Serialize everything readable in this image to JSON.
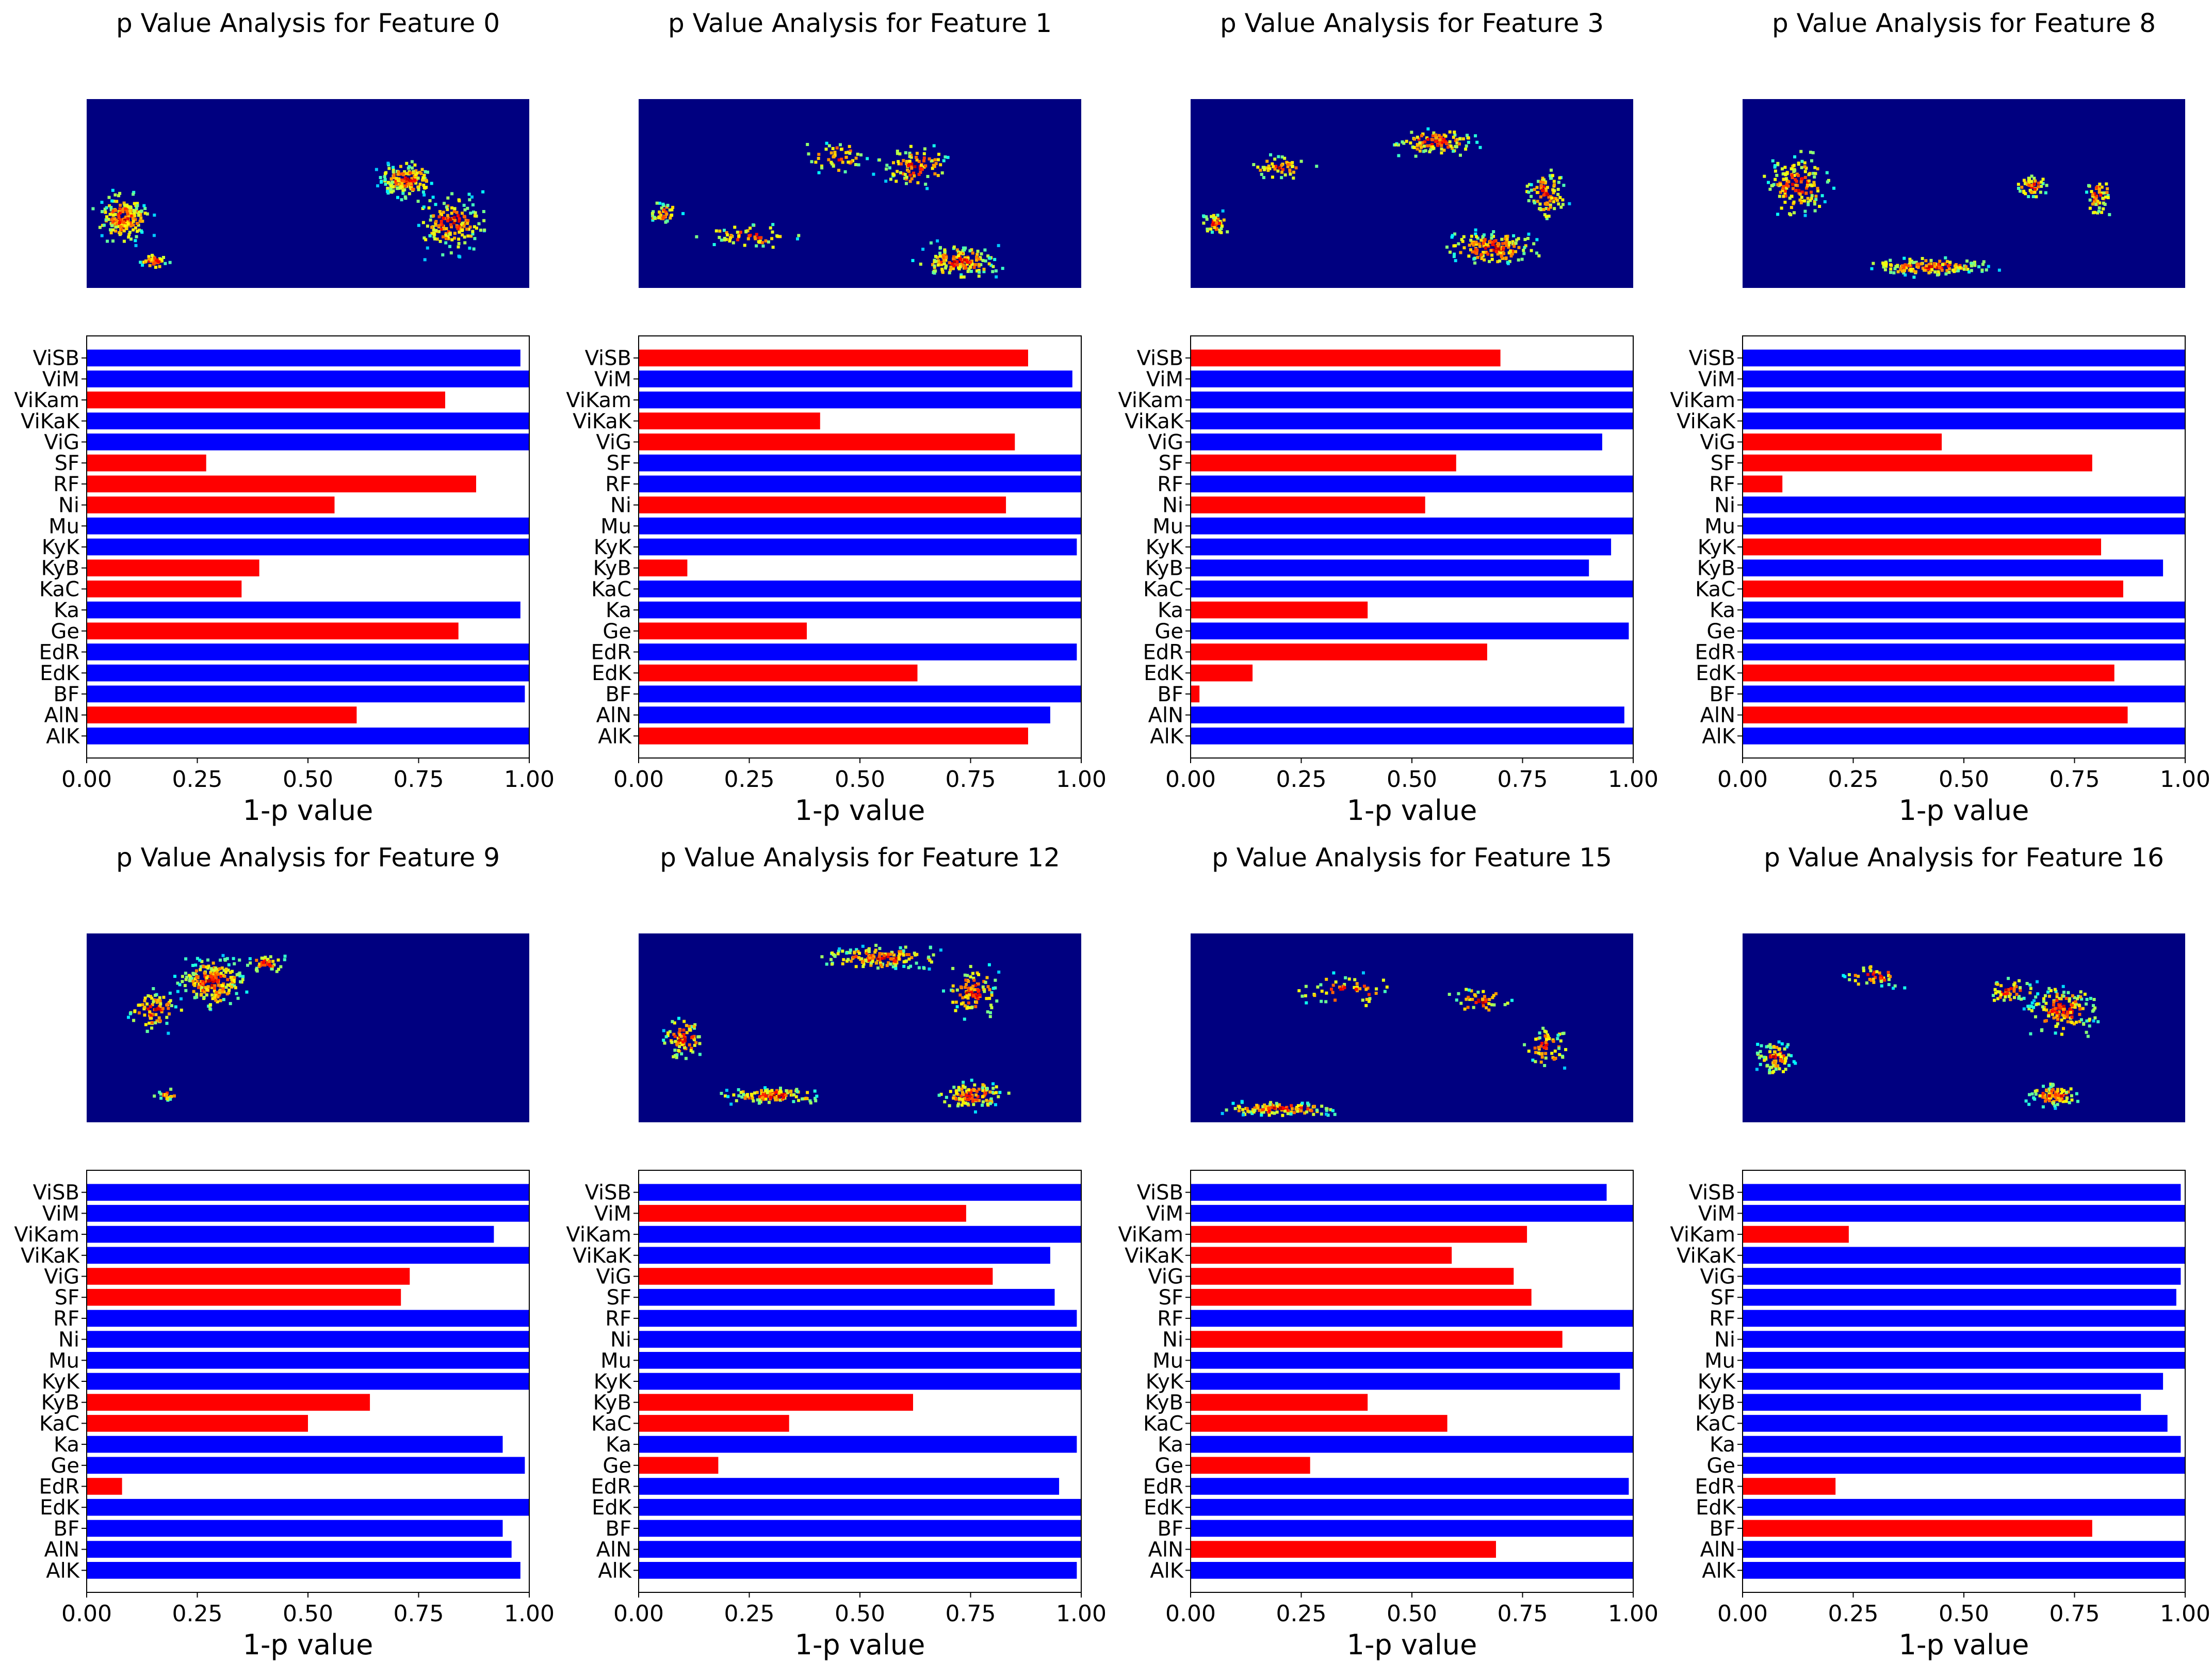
{
  "figure": {
    "xlabel": "1-p value",
    "colors": {
      "pass": "#0000ff",
      "fail": "#ff0000",
      "heatmap_background": "#000080"
    }
  },
  "chart_data": [
    {
      "type": "bar",
      "title": "p Value Analysis for Feature 0",
      "xlabel": "1-p value",
      "xlim": [
        0,
        1
      ],
      "xticks": [
        "0.00",
        "0.25",
        "0.50",
        "0.75",
        "1.00"
      ],
      "categories": [
        "ViSB",
        "ViM",
        "ViKam",
        "ViKaK",
        "ViG",
        "SF",
        "RF",
        "Ni",
        "Mu",
        "KyK",
        "KyB",
        "KaC",
        "Ka",
        "Ge",
        "EdR",
        "EdK",
        "BF",
        "AlN",
        "AlK"
      ],
      "values": [
        0.98,
        1.0,
        0.81,
        1.0,
        1.0,
        0.27,
        0.88,
        0.56,
        1.0,
        1.0,
        0.39,
        0.35,
        0.98,
        0.84,
        1.0,
        1.0,
        0.99,
        0.61,
        1.0
      ],
      "bar_colors": [
        "blue",
        "blue",
        "red",
        "blue",
        "blue",
        "red",
        "red",
        "red",
        "blue",
        "blue",
        "red",
        "red",
        "blue",
        "red",
        "blue",
        "blue",
        "blue",
        "red",
        "blue"
      ],
      "heatmap": "feature map (jet colormap)"
    },
    {
      "type": "bar",
      "title": "p Value Analysis for Feature 1",
      "xlabel": "1-p value",
      "xlim": [
        0,
        1
      ],
      "xticks": [
        "0.00",
        "0.25",
        "0.50",
        "0.75",
        "1.00"
      ],
      "categories": [
        "ViSB",
        "ViM",
        "ViKam",
        "ViKaK",
        "ViG",
        "SF",
        "RF",
        "Ni",
        "Mu",
        "KyK",
        "KyB",
        "KaC",
        "Ka",
        "Ge",
        "EdR",
        "EdK",
        "BF",
        "AlN",
        "AlK"
      ],
      "values": [
        0.88,
        0.98,
        1.0,
        0.41,
        0.85,
        1.0,
        1.0,
        0.83,
        1.0,
        0.99,
        0.11,
        1.0,
        1.0,
        0.38,
        0.99,
        0.63,
        1.0,
        0.93,
        0.88
      ],
      "bar_colors": [
        "red",
        "blue",
        "blue",
        "red",
        "red",
        "blue",
        "blue",
        "red",
        "blue",
        "blue",
        "red",
        "blue",
        "blue",
        "red",
        "blue",
        "red",
        "blue",
        "blue",
        "red"
      ],
      "heatmap": "feature map (jet colormap)"
    },
    {
      "type": "bar",
      "title": "p Value Analysis for Feature 3",
      "xlabel": "1-p value",
      "xlim": [
        0,
        1
      ],
      "xticks": [
        "0.00",
        "0.25",
        "0.50",
        "0.75",
        "1.00"
      ],
      "categories": [
        "ViSB",
        "ViM",
        "ViKam",
        "ViKaK",
        "ViG",
        "SF",
        "RF",
        "Ni",
        "Mu",
        "KyK",
        "KyB",
        "KaC",
        "Ka",
        "Ge",
        "EdR",
        "EdK",
        "BF",
        "AlN",
        "AlK"
      ],
      "values": [
        0.7,
        1.0,
        1.0,
        1.0,
        0.93,
        0.6,
        1.0,
        0.53,
        1.0,
        0.95,
        0.9,
        1.0,
        0.4,
        0.99,
        0.67,
        0.14,
        0.02,
        0.98,
        1.0
      ],
      "bar_colors": [
        "red",
        "blue",
        "blue",
        "blue",
        "blue",
        "red",
        "blue",
        "red",
        "blue",
        "blue",
        "blue",
        "blue",
        "red",
        "blue",
        "red",
        "red",
        "red",
        "blue",
        "blue"
      ],
      "heatmap": "feature map (jet colormap)"
    },
    {
      "type": "bar",
      "title": "p Value Analysis for Feature 8",
      "xlabel": "1-p value",
      "xlim": [
        0,
        1
      ],
      "xticks": [
        "0.00",
        "0.25",
        "0.50",
        "0.75",
        "1.00"
      ],
      "categories": [
        "ViSB",
        "ViM",
        "ViKam",
        "ViKaK",
        "ViG",
        "SF",
        "RF",
        "Ni",
        "Mu",
        "KyK",
        "KyB",
        "KaC",
        "Ka",
        "Ge",
        "EdR",
        "EdK",
        "BF",
        "AlN",
        "AlK"
      ],
      "values": [
        1.0,
        1.0,
        1.0,
        1.0,
        0.45,
        0.79,
        0.09,
        1.0,
        1.0,
        0.81,
        0.95,
        0.86,
        1.0,
        1.0,
        1.0,
        0.84,
        1.0,
        0.87,
        1.0
      ],
      "bar_colors": [
        "blue",
        "blue",
        "blue",
        "blue",
        "red",
        "red",
        "red",
        "blue",
        "blue",
        "red",
        "blue",
        "red",
        "blue",
        "blue",
        "blue",
        "red",
        "blue",
        "red",
        "blue"
      ],
      "heatmap": "feature map (jet colormap)"
    },
    {
      "type": "bar",
      "title": "p Value Analysis for Feature 9",
      "xlabel": "1-p value",
      "xlim": [
        0,
        1
      ],
      "xticks": [
        "0.00",
        "0.25",
        "0.50",
        "0.75",
        "1.00"
      ],
      "categories": [
        "ViSB",
        "ViM",
        "ViKam",
        "ViKaK",
        "ViG",
        "SF",
        "RF",
        "Ni",
        "Mu",
        "KyK",
        "KyB",
        "KaC",
        "Ka",
        "Ge",
        "EdR",
        "EdK",
        "BF",
        "AlN",
        "AlK"
      ],
      "values": [
        1.0,
        1.0,
        0.92,
        1.0,
        0.73,
        0.71,
        1.0,
        1.0,
        1.0,
        1.0,
        0.64,
        0.5,
        0.94,
        0.99,
        0.08,
        1.0,
        0.94,
        0.96,
        0.98
      ],
      "bar_colors": [
        "blue",
        "blue",
        "blue",
        "blue",
        "red",
        "red",
        "blue",
        "blue",
        "blue",
        "blue",
        "red",
        "red",
        "blue",
        "blue",
        "red",
        "blue",
        "blue",
        "blue",
        "blue"
      ],
      "heatmap": "feature map (jet colormap)"
    },
    {
      "type": "bar",
      "title": "p Value Analysis for Feature 12",
      "xlabel": "1-p value",
      "xlim": [
        0,
        1
      ],
      "xticks": [
        "0.00",
        "0.25",
        "0.50",
        "0.75",
        "1.00"
      ],
      "categories": [
        "ViSB",
        "ViM",
        "ViKam",
        "ViKaK",
        "ViG",
        "SF",
        "RF",
        "Ni",
        "Mu",
        "KyK",
        "KyB",
        "KaC",
        "Ka",
        "Ge",
        "EdR",
        "EdK",
        "BF",
        "AlN",
        "AlK"
      ],
      "values": [
        1.0,
        0.74,
        1.0,
        0.93,
        0.8,
        0.94,
        0.99,
        1.0,
        1.0,
        1.0,
        0.62,
        0.34,
        0.99,
        0.18,
        0.95,
        1.0,
        1.0,
        1.0,
        0.99
      ],
      "bar_colors": [
        "blue",
        "red",
        "blue",
        "blue",
        "red",
        "blue",
        "blue",
        "blue",
        "blue",
        "blue",
        "red",
        "red",
        "blue",
        "red",
        "blue",
        "blue",
        "blue",
        "blue",
        "blue"
      ],
      "heatmap": "feature map (jet colormap)"
    },
    {
      "type": "bar",
      "title": "p Value Analysis for Feature 15",
      "xlabel": "1-p value",
      "xlim": [
        0,
        1
      ],
      "xticks": [
        "0.00",
        "0.25",
        "0.50",
        "0.75",
        "1.00"
      ],
      "categories": [
        "ViSB",
        "ViM",
        "ViKam",
        "ViKaK",
        "ViG",
        "SF",
        "RF",
        "Ni",
        "Mu",
        "KyK",
        "KyB",
        "KaC",
        "Ka",
        "Ge",
        "EdR",
        "EdK",
        "BF",
        "AlN",
        "AlK"
      ],
      "values": [
        0.94,
        1.0,
        0.76,
        0.59,
        0.73,
        0.77,
        1.0,
        0.84,
        1.0,
        0.97,
        0.4,
        0.58,
        1.0,
        0.27,
        0.99,
        1.0,
        1.0,
        0.69,
        1.0
      ],
      "bar_colors": [
        "blue",
        "blue",
        "red",
        "red",
        "red",
        "red",
        "blue",
        "red",
        "blue",
        "blue",
        "red",
        "red",
        "blue",
        "red",
        "blue",
        "blue",
        "blue",
        "red",
        "blue"
      ],
      "heatmap": "feature map (jet colormap)"
    },
    {
      "type": "bar",
      "title": "p Value Analysis for Feature 16",
      "xlabel": "1-p value",
      "xlim": [
        0,
        1
      ],
      "xticks": [
        "0.00",
        "0.25",
        "0.50",
        "0.75",
        "1.00"
      ],
      "categories": [
        "ViSB",
        "ViM",
        "ViKam",
        "ViKaK",
        "ViG",
        "SF",
        "RF",
        "Ni",
        "Mu",
        "KyK",
        "KyB",
        "KaC",
        "Ka",
        "Ge",
        "EdR",
        "EdK",
        "BF",
        "AlN",
        "AlK"
      ],
      "values": [
        0.99,
        1.0,
        0.24,
        1.0,
        0.99,
        0.98,
        1.0,
        1.0,
        1.0,
        0.95,
        0.9,
        0.96,
        0.99,
        1.0,
        0.21,
        1.0,
        0.79,
        1.0,
        1.0
      ],
      "bar_colors": [
        "blue",
        "blue",
        "red",
        "blue",
        "blue",
        "blue",
        "blue",
        "blue",
        "blue",
        "blue",
        "blue",
        "blue",
        "blue",
        "blue",
        "red",
        "blue",
        "red",
        "blue",
        "blue"
      ],
      "heatmap": "feature map (jet colormap)"
    }
  ]
}
